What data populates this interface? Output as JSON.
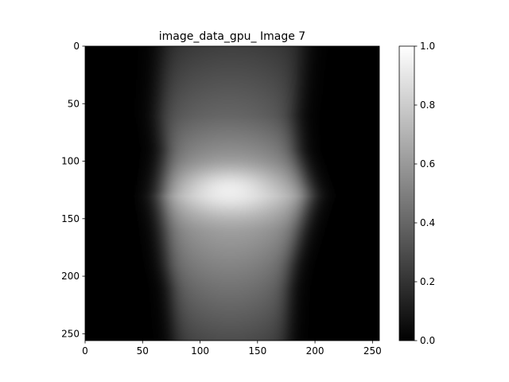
{
  "chart_data": {
    "type": "heatmap",
    "title": "image_data_gpu_ Image 7",
    "xlabel": "",
    "ylabel": "",
    "colormap": "gray",
    "image_size": [
      256,
      256
    ],
    "x_ticks": [
      0,
      50,
      100,
      150,
      200,
      250
    ],
    "y_ticks": [
      0,
      50,
      100,
      150,
      200,
      250
    ],
    "xlim": [
      0,
      256
    ],
    "ylim": [
      256,
      0
    ],
    "colorbar": {
      "range": [
        0.0,
        1.0
      ],
      "ticks": [
        "0.0",
        "0.2",
        "0.4",
        "0.6",
        "0.8",
        "1.0"
      ],
      "tick_values": [
        0.0,
        0.2,
        0.4,
        0.6,
        0.8,
        1.0
      ]
    },
    "features": {
      "band_center_x": [
        [
          0,
          128
        ],
        [
          60,
          123
        ],
        [
          125,
          130
        ],
        [
          190,
          125
        ],
        [
          256,
          126
        ]
      ],
      "band_half_width": [
        [
          0,
          62
        ],
        [
          50,
          60
        ],
        [
          90,
          58
        ],
        [
          130,
          65
        ],
        [
          160,
          60
        ],
        [
          210,
          52
        ],
        [
          256,
          50
        ]
      ],
      "band_brightness": [
        [
          0,
          0.25
        ],
        [
          60,
          0.4
        ],
        [
          100,
          0.6
        ],
        [
          130,
          0.8
        ],
        [
          160,
          0.62
        ],
        [
          210,
          0.45
        ],
        [
          256,
          0.3
        ]
      ],
      "hotspot": {
        "center": [
          125,
          125
        ],
        "peak": 0.95
      }
    }
  }
}
